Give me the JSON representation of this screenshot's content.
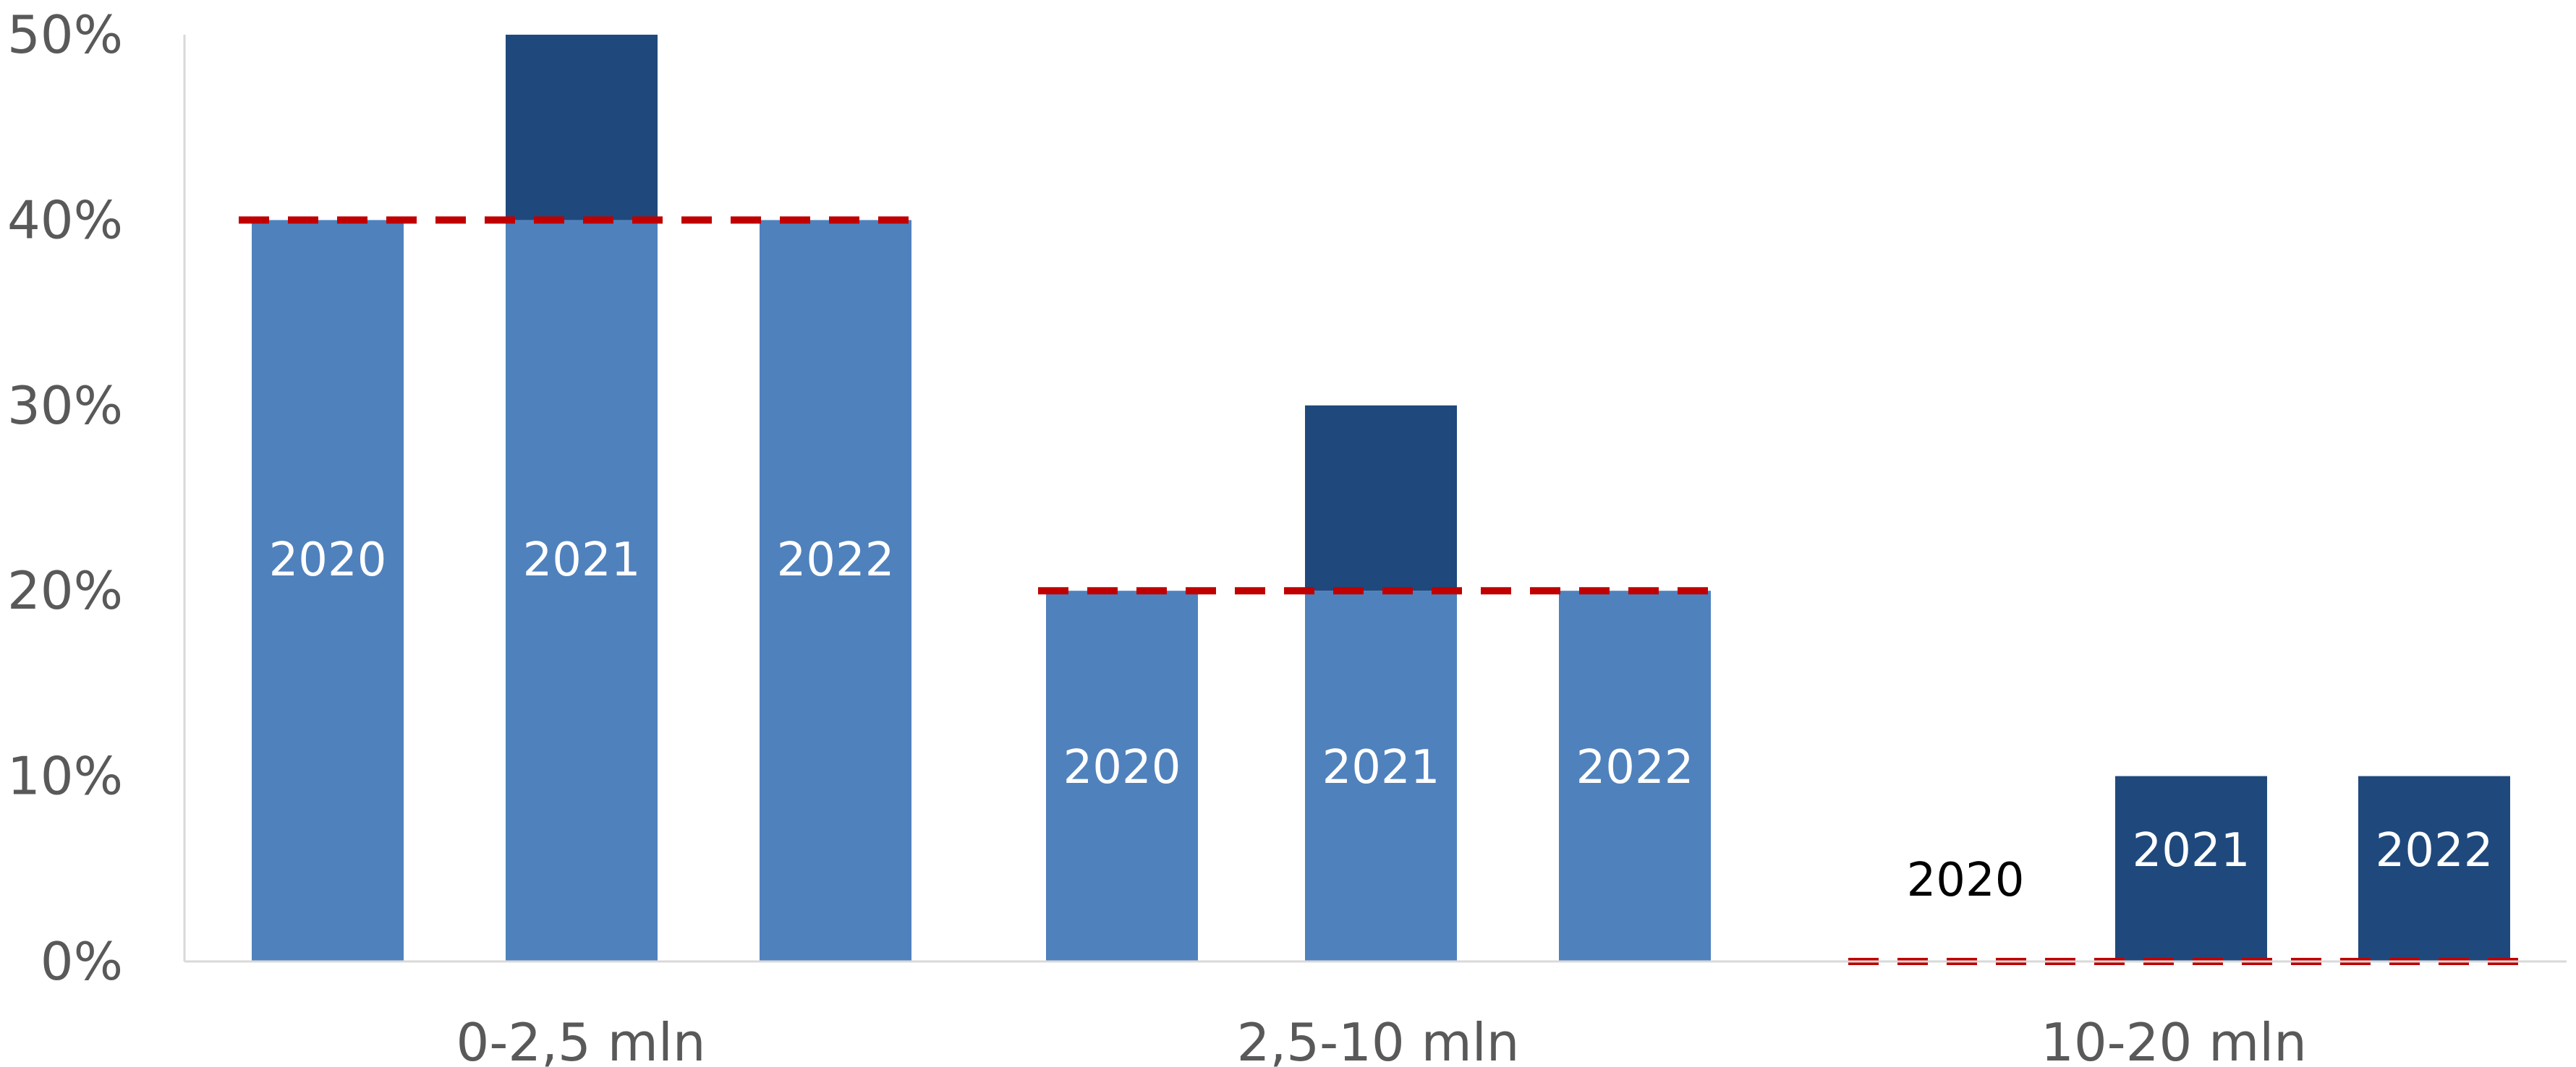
{
  "chart_data": {
    "type": "bar",
    "stacked": true,
    "title": "",
    "xlabel": "",
    "ylabel": "",
    "ylim": [
      0,
      0.5
    ],
    "y_ticks": [
      {
        "value": 0.0,
        "label": "0%"
      },
      {
        "value": 0.1,
        "label": "10%"
      },
      {
        "value": 0.2,
        "label": "20%"
      },
      {
        "value": 0.3,
        "label": "30%"
      },
      {
        "value": 0.4,
        "label": "40%"
      },
      {
        "value": 0.5,
        "label": "50%"
      }
    ],
    "grid": false,
    "legend": "none",
    "colors": {
      "base": "#4F81BD",
      "increment": "#1F497D",
      "threshold_line": "#C00000",
      "axis": "#D9D9D9",
      "label_light": "#FFFFFF",
      "label_dark": "#000000"
    },
    "groups": [
      {
        "category": "0-2,5 mln",
        "threshold": 0.4,
        "bars": [
          {
            "label": "2020",
            "base": 0.4,
            "increment": 0.0
          },
          {
            "label": "2021",
            "base": 0.4,
            "increment": 0.1
          },
          {
            "label": "2022",
            "base": 0.4,
            "increment": 0.0
          }
        ]
      },
      {
        "category": "2,5-10 mln",
        "threshold": 0.2,
        "bars": [
          {
            "label": "2020",
            "base": 0.2,
            "increment": 0.0
          },
          {
            "label": "2021",
            "base": 0.2,
            "increment": 0.1
          },
          {
            "label": "2022",
            "base": 0.2,
            "increment": 0.0
          }
        ]
      },
      {
        "category": "10-20 mln",
        "threshold": 0.0,
        "bars": [
          {
            "label": "2020",
            "base": 0.0,
            "increment": 0.0
          },
          {
            "label": "2021",
            "base": 0.0,
            "increment": 0.1
          },
          {
            "label": "2022",
            "base": 0.0,
            "increment": 0.1
          }
        ]
      }
    ]
  }
}
